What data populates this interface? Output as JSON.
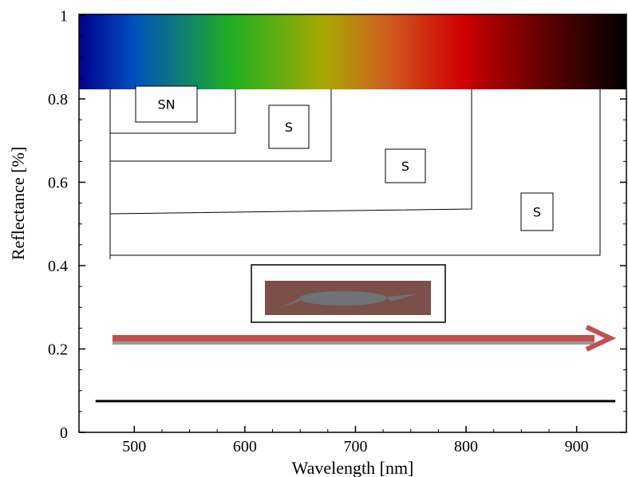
{
  "chart_data": {
    "type": "line",
    "x_label": "Wavelength [nm]",
    "y_label": "Reflectance [%]",
    "xlim": [
      450,
      945
    ],
    "ylim": [
      0,
      1
    ],
    "xticks": [
      500,
      600,
      700,
      800,
      900
    ],
    "yticks": [
      0,
      0.2,
      0.4,
      0.6,
      0.8,
      1
    ],
    "x": [
      465,
      935
    ],
    "series": [
      {
        "color": "#000000",
        "values": [
          0.075,
          0.075
        ]
      }
    ],
    "annotations": [
      "SN",
      "S",
      "S",
      "S"
    ]
  }
}
